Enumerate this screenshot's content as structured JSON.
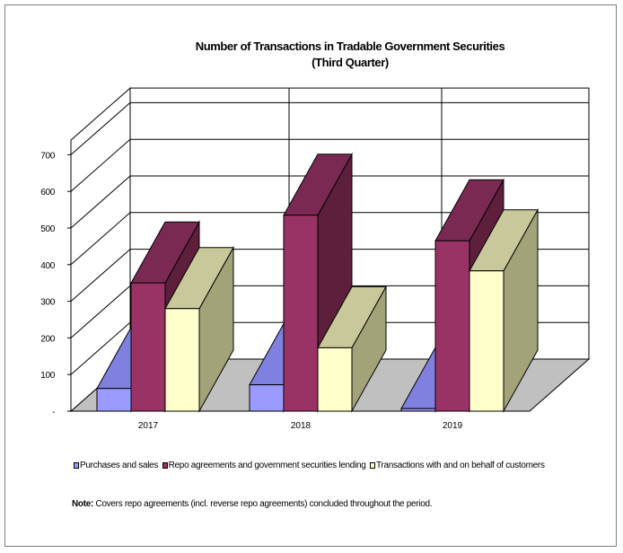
{
  "chart_data": {
    "type": "bar",
    "title": "Number of Transactions in Tradable Government Securities",
    "subtitle": "(Third Quarter)",
    "categories": [
      "2017",
      "2018",
      "2019"
    ],
    "series": [
      {
        "name": "Purchases and sales",
        "values": [
          62,
          72,
          7
        ]
      },
      {
        "name": "Repo agreements and government securities lending",
        "values": [
          350,
          535,
          465
        ]
      },
      {
        "name": "Transactions with and on behalf of customers",
        "values": [
          280,
          173,
          383
        ]
      }
    ],
    "y_ticks": [
      "-",
      "100",
      "200",
      "300",
      "400",
      "500",
      "600",
      "700"
    ],
    "ylim": [
      0,
      700
    ],
    "grid": true,
    "legend_position": "bottom",
    "colors": {
      "purchases": {
        "front": "#9a9aff",
        "side": "#6b6bcc",
        "top": "#8080e0"
      },
      "repo": {
        "front": "#993366",
        "side": "#5e1f3d",
        "top": "#7a2a52"
      },
      "customers": {
        "front": "#ffffcc",
        "side": "#a3a37a",
        "top": "#c8c89a"
      },
      "floor": "#c0c0c0",
      "wall": "#ffffff"
    }
  },
  "note": {
    "label": "Note:",
    "text": " Covers repo agreements (incl. reverse repo agreements) concluded throughout the period."
  }
}
